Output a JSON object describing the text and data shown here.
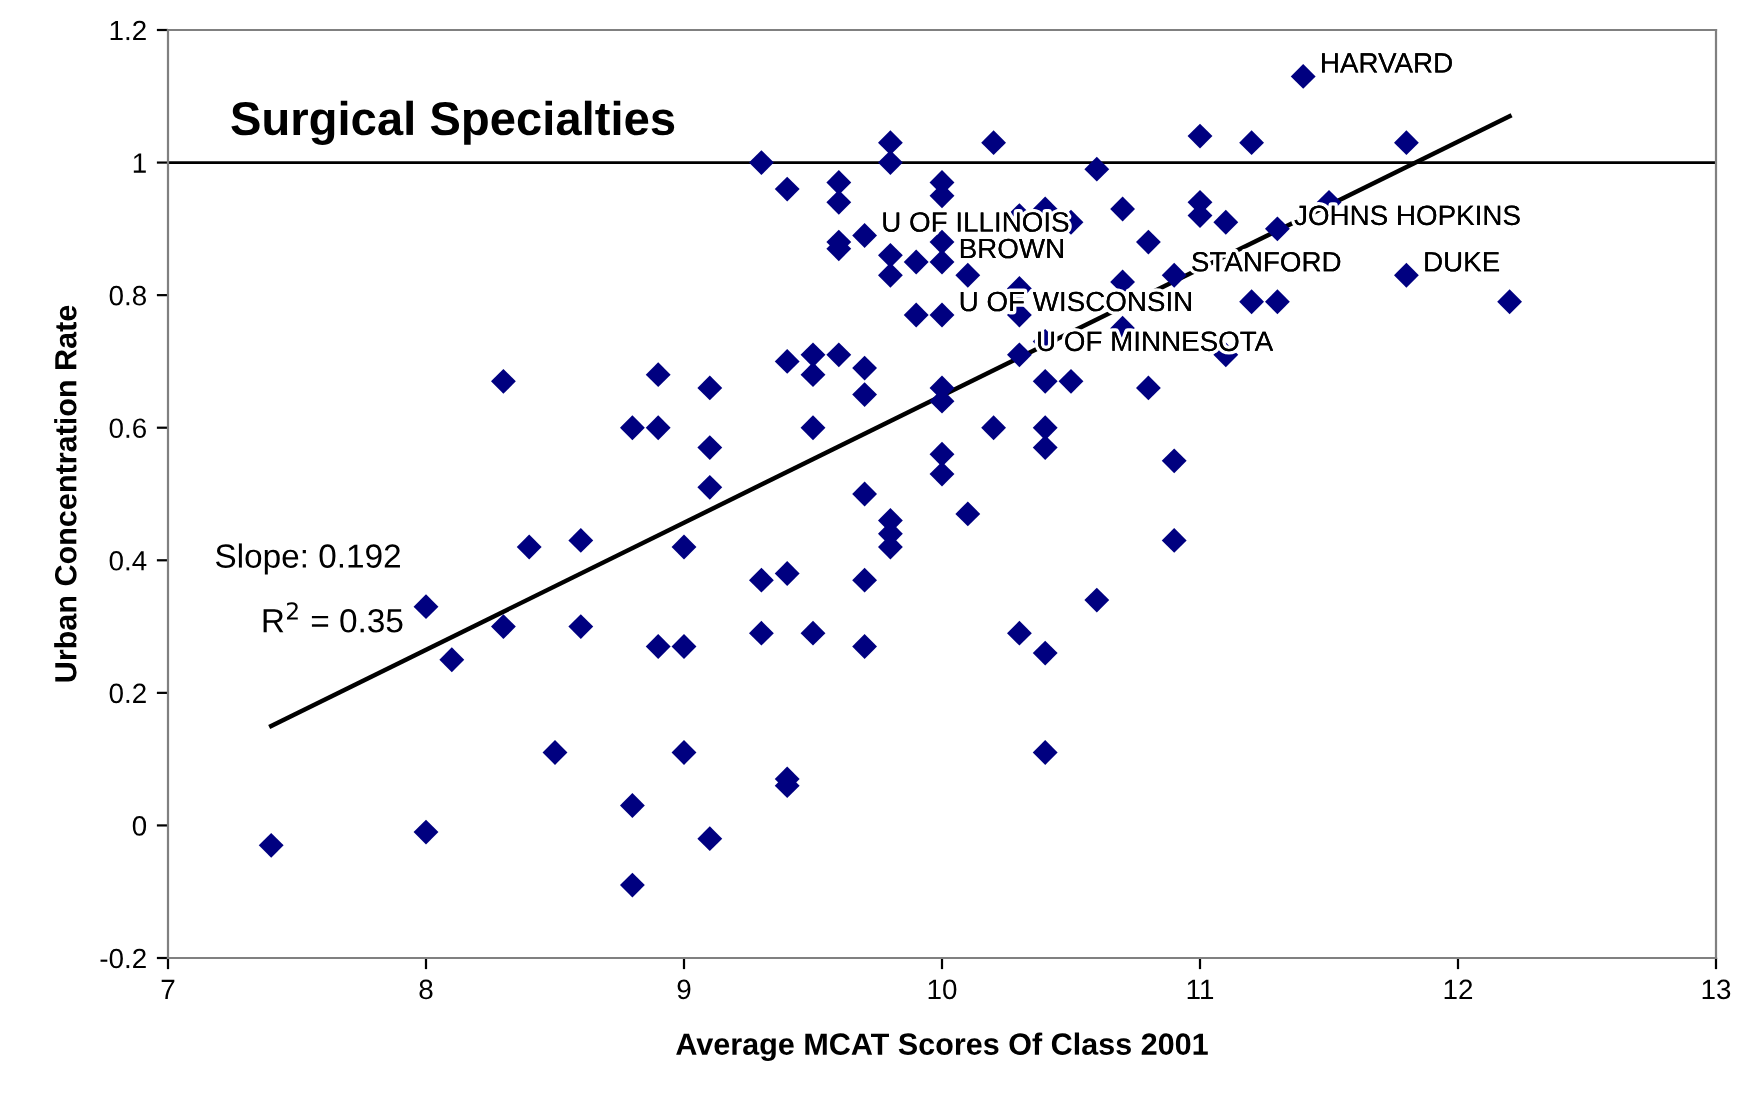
{
  "chart_data": {
    "type": "scatter",
    "title": "Surgical Specialties",
    "xlabel": "Average MCAT Scores Of Class 2001",
    "ylabel": "Urban Concentration Rate",
    "xlim": [
      7,
      13
    ],
    "xticks": [
      7,
      8,
      9,
      10,
      11,
      12,
      13
    ],
    "ylim": [
      -0.2,
      1.2
    ],
    "yticks": [
      -0.2,
      0,
      0.2,
      0.4,
      0.6,
      0.8,
      1,
      1.2
    ],
    "grid": false,
    "legend": false,
    "marker": "diamond",
    "series": [
      {
        "color": "#000080",
        "x": [
          7.4,
          8.0,
          8.0,
          8.1,
          8.3,
          8.3,
          8.4,
          8.5,
          8.6,
          8.6,
          8.8,
          8.8,
          8.8,
          8.9,
          8.9,
          8.9,
          9.0,
          9.0,
          9.0,
          9.1,
          9.1,
          9.1,
          9.1,
          9.3,
          9.3,
          9.3,
          9.4,
          9.4,
          9.4,
          9.4,
          9.4,
          9.5,
          9.5,
          9.5,
          9.5,
          9.6,
          9.6,
          9.6,
          9.6,
          9.6,
          9.7,
          9.7,
          9.7,
          9.7,
          9.7,
          9.7,
          9.8,
          9.8,
          9.8,
          9.8,
          9.8,
          9.8,
          9.8,
          9.9,
          9.9,
          10.0,
          10.0,
          10.0,
          10.0,
          10.0,
          10.0,
          10.0,
          10.0,
          10.0,
          10.1,
          10.1,
          10.2,
          10.2,
          10.3,
          10.3,
          10.3,
          10.3,
          10.3,
          10.4,
          10.4,
          10.4,
          10.4,
          10.4,
          10.4,
          10.4,
          10.5,
          10.5,
          10.6,
          10.6,
          10.7,
          10.7,
          10.7,
          10.8,
          10.8,
          10.9,
          10.9,
          10.9,
          11.0,
          11.0,
          11.0,
          11.1,
          11.1,
          11.2,
          11.2,
          11.3,
          11.3,
          11.4,
          11.5,
          11.8,
          11.8,
          12.2
        ],
        "values": [
          -0.03,
          0.33,
          -0.01,
          0.25,
          0.67,
          0.3,
          0.42,
          0.11,
          0.43,
          0.3,
          0.6,
          0.03,
          -0.09,
          0.68,
          0.6,
          0.27,
          0.42,
          0.27,
          0.11,
          0.66,
          0.57,
          0.51,
          -0.02,
          1.0,
          0.37,
          0.29,
          0.96,
          0.7,
          0.38,
          0.07,
          0.06,
          0.71,
          0.68,
          0.6,
          0.29,
          0.97,
          0.94,
          0.88,
          0.87,
          0.71,
          0.89,
          0.69,
          0.65,
          0.5,
          0.37,
          0.27,
          1.03,
          1.0,
          0.86,
          0.83,
          0.46,
          0.44,
          0.42,
          0.85,
          0.77,
          0.97,
          0.95,
          0.88,
          0.85,
          0.77,
          0.66,
          0.64,
          0.56,
          0.53,
          0.83,
          0.47,
          1.03,
          0.6,
          0.92,
          0.81,
          0.77,
          0.71,
          0.29,
          0.93,
          0.73,
          0.67,
          0.6,
          0.57,
          0.26,
          0.11,
          0.91,
          0.67,
          0.99,
          0.34,
          0.93,
          0.82,
          0.75,
          0.88,
          0.66,
          0.83,
          0.55,
          0.43,
          1.04,
          0.94,
          0.92,
          0.91,
          0.71,
          1.03,
          0.79,
          0.9,
          0.79,
          1.13,
          0.94,
          1.03,
          0.83,
          0.79
        ]
      },
      {
        "type": "line",
        "color": "#000000",
        "marker": "none",
        "line_style": "solid",
        "x": [
          7.4,
          12.2
        ],
        "values": [
          0.15,
          1.07
        ]
      }
    ],
    "ref_lines": [
      {
        "axis": "y",
        "value": 1,
        "color": "#000000",
        "line_style": "solid"
      }
    ],
    "annotations": [
      {
        "text": "HARVARD",
        "x": 11.4,
        "y": 1.13
      },
      {
        "text": "U OF ILLINOIS",
        "x": 9.7,
        "y": 0.89
      },
      {
        "text": "JOHNS HOPKINS",
        "x": 11.3,
        "y": 0.9
      },
      {
        "text": "BROWN",
        "x": 10.0,
        "y": 0.85
      },
      {
        "text": "STANFORD",
        "x": 10.9,
        "y": 0.83
      },
      {
        "text": "DUKE",
        "x": 11.8,
        "y": 0.83
      },
      {
        "text": "U OF WISCONSIN",
        "x": 10.0,
        "y": 0.77
      },
      {
        "text": "U OF MINNESOTA",
        "x": 10.3,
        "y": 0.71
      },
      "Slope: 0.192",
      "R$^{2}$ = 0.35"
    ]
  }
}
